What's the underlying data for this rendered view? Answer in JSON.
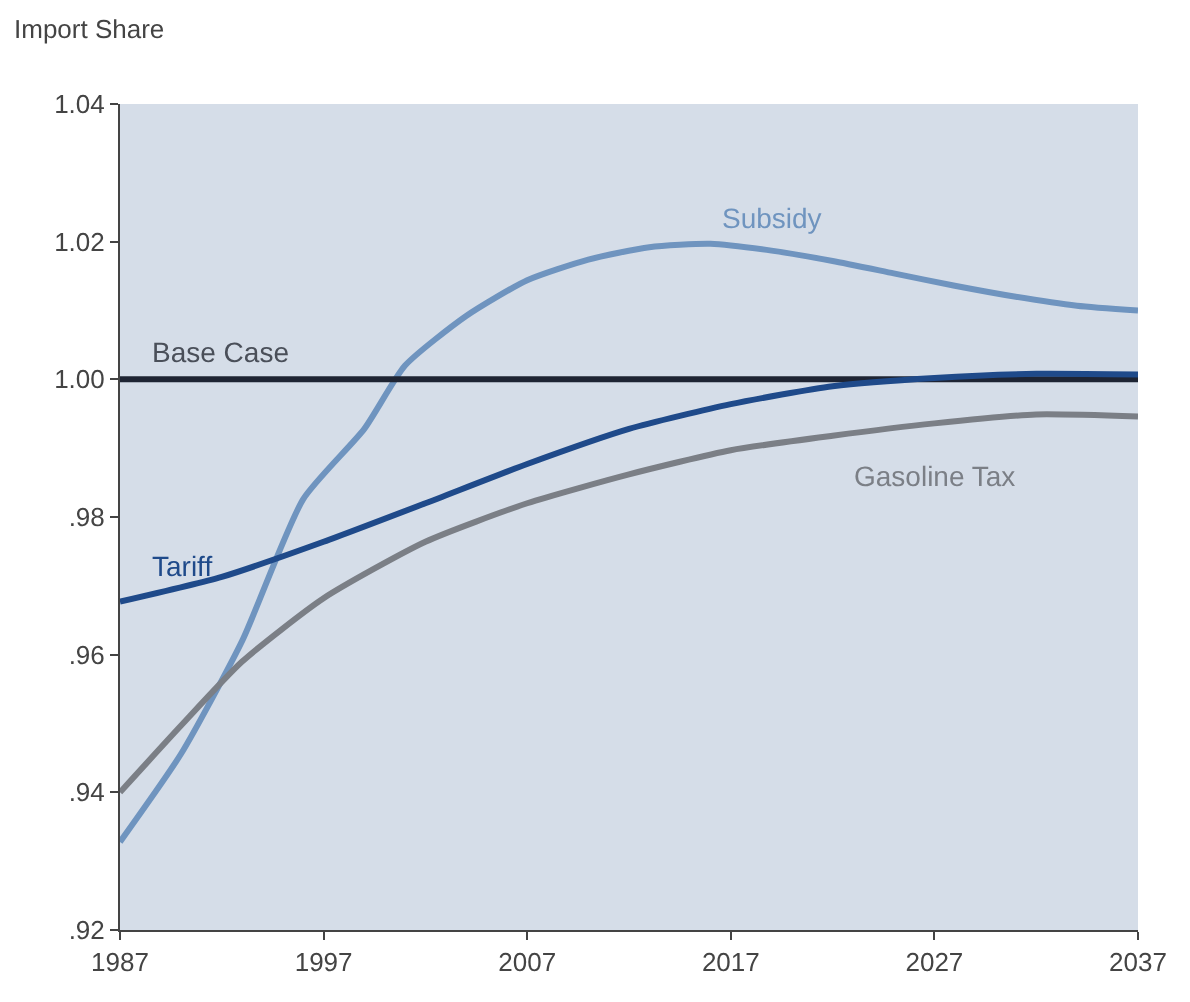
{
  "chart_data": {
    "type": "line",
    "ylabel": "Import Share",
    "xlim": [
      1987,
      2037
    ],
    "xticks": [
      1987,
      1997,
      2007,
      2017,
      2027,
      2037
    ],
    "ylim": [
      0.92,
      1.04
    ],
    "yticks": [
      {
        "value": 0.92,
        "label": ".92"
      },
      {
        "value": 0.94,
        "label": ".94"
      },
      {
        "value": 0.96,
        "label": ".96"
      },
      {
        "value": 0.98,
        "label": ".98"
      },
      {
        "value": 1.0,
        "label": "1.00"
      },
      {
        "value": 1.02,
        "label": "1.02"
      },
      {
        "value": 1.04,
        "label": "1.04"
      }
    ],
    "grid": false,
    "legend": false,
    "marker": "none",
    "line_style": "solid",
    "series": [
      {
        "name": "Subsidy",
        "color": "#6f94bf",
        "x": [
          1987,
          1990,
          1993,
          1996,
          1999,
          2001,
          2004,
          2007,
          2010,
          2013,
          2016,
          2019,
          2022,
          2025,
          2028,
          2031,
          2034,
          2037
        ],
        "values": [
          0.9328,
          0.9456,
          0.962,
          0.9826,
          0.9928,
          1.002,
          1.0092,
          1.0144,
          1.0174,
          1.0192,
          1.0197,
          1.0187,
          1.0172,
          1.0154,
          1.0136,
          1.012,
          1.0107,
          1.01
        ]
      },
      {
        "name": "Base Case",
        "color": "#1e2433",
        "x": [
          1987,
          2037
        ],
        "values": [
          1.0,
          1.0
        ]
      },
      {
        "name": "Tariff",
        "color": "#1f4a8a",
        "x": [
          1987,
          1992,
          1997,
          2002,
          2007,
          2012,
          2017,
          2022,
          2027,
          2032,
          2037
        ],
        "values": [
          0.9677,
          0.9713,
          0.9764,
          0.982,
          0.9877,
          0.9928,
          0.9964,
          0.999,
          1.0002,
          1.0008,
          1.0007
        ]
      },
      {
        "name": "Gasoline Tax",
        "color": "#7b7f86",
        "x": [
          1987,
          1990,
          1993,
          1997,
          2002,
          2007,
          2012,
          2017,
          2022,
          2027,
          2032,
          2037
        ],
        "values": [
          0.94,
          0.9497,
          0.959,
          0.9682,
          0.9764,
          0.982,
          0.9862,
          0.9897,
          0.9918,
          0.9936,
          0.9949,
          0.9946
        ]
      }
    ]
  }
}
